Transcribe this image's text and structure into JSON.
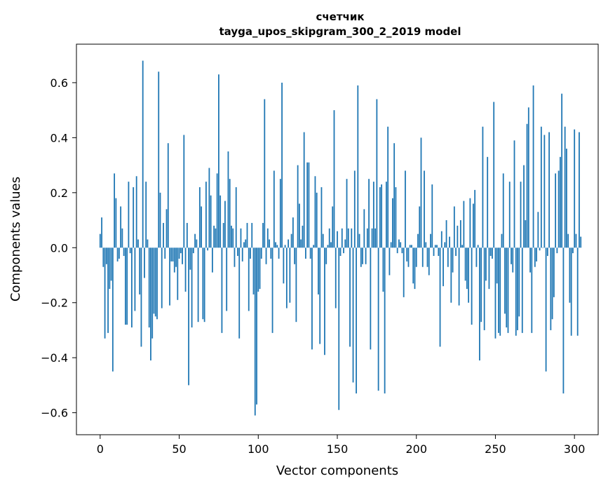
{
  "chart_data": {
    "type": "bar",
    "title": "счетчик",
    "subtitle": "tayga_upos_skipgram_300_2_2019 model",
    "xlabel": "Vector components",
    "ylabel": "Components values",
    "xlim": [
      -15,
      315
    ],
    "ylim": [
      -0.68,
      0.74
    ],
    "xticks": [
      0,
      50,
      100,
      150,
      200,
      250,
      300
    ],
    "xtick_labels": [
      "0",
      "50",
      "100",
      "150",
      "200",
      "250",
      "300"
    ],
    "yticks": [
      -0.6,
      -0.4,
      -0.2,
      0.0,
      0.2,
      0.4,
      0.6
    ],
    "ytick_labels": [
      "−0.6",
      "−0.4",
      "−0.2",
      "0.0",
      "0.2",
      "0.4",
      "0.6"
    ],
    "grid": false,
    "bar_color": "#1f77b4",
    "series": [
      {
        "values": [
          0.05,
          0.11,
          -0.07,
          -0.33,
          -0.06,
          -0.31,
          -0.15,
          -0.12,
          -0.45,
          0.27,
          0.18,
          -0.05,
          -0.04,
          0.15,
          0.07,
          -0.03,
          -0.28,
          -0.28,
          0.24,
          -0.02,
          -0.29,
          0.22,
          -0.23,
          0.26,
          0.03,
          -0.17,
          -0.36,
          0.68,
          -0.11,
          0.24,
          0.03,
          -0.29,
          -0.41,
          -0.33,
          -0.24,
          -0.25,
          -0.26,
          0.64,
          0.2,
          -0.22,
          0.09,
          -0.04,
          0.14,
          0.38,
          -0.21,
          -0.05,
          -0.05,
          -0.09,
          -0.07,
          -0.19,
          -0.04,
          -0.02,
          -0.06,
          0.41,
          -0.16,
          0.09,
          -0.5,
          -0.08,
          -0.29,
          -0.02,
          0.05,
          0.03,
          -0.27,
          0.22,
          0.15,
          -0.26,
          -0.27,
          0.24,
          -0.01,
          0.29,
          0.19,
          -0.09,
          0.08,
          0.07,
          0.27,
          0.63,
          0.19,
          -0.31,
          0.09,
          0.17,
          -0.23,
          0.35,
          0.25,
          0.08,
          0.07,
          -0.07,
          0.22,
          -0.03,
          -0.33,
          0.07,
          -0.05,
          0.02,
          0.03,
          0.09,
          -0.23,
          -0.04,
          0.09,
          -0.17,
          -0.61,
          -0.57,
          -0.16,
          -0.15,
          -0.04,
          0.09,
          0.54,
          -0.06,
          0.07,
          0.03,
          -0.04,
          -0.31,
          0.28,
          0.02,
          0.01,
          -0.04,
          0.25,
          0.6,
          -0.13,
          0.01,
          -0.22,
          0.03,
          -0.2,
          0.05,
          0.11,
          -0.06,
          -0.27,
          0.3,
          0.16,
          0.03,
          0.08,
          0.42,
          -0.04,
          0.31,
          0.31,
          -0.04,
          -0.37,
          0.01,
          0.26,
          0.2,
          -0.17,
          -0.35,
          0.22,
          0.05,
          -0.39,
          -0.06,
          0.01,
          0.07,
          0.02,
          0.15,
          0.5,
          -0.22,
          0.06,
          -0.59,
          -0.03,
          0.07,
          -0.02,
          0.03,
          0.25,
          0.07,
          -0.36,
          0.07,
          -0.49,
          0.28,
          -0.53,
          0.59,
          0.05,
          -0.07,
          -0.06,
          0.14,
          -0.06,
          0.07,
          0.25,
          -0.37,
          0.07,
          0.24,
          0.07,
          0.54,
          -0.52,
          0.22,
          0.23,
          -0.16,
          -0.53,
          0.24,
          0.44,
          -0.1,
          0.02,
          0.18,
          0.38,
          0.22,
          -0.02,
          0.03,
          0.02,
          -0.02,
          -0.18,
          0.28,
          -0.05,
          -0.07,
          0.01,
          0.01,
          -0.13,
          -0.15,
          -0.07,
          0.05,
          0.15,
          0.4,
          -0.07,
          0.28,
          0.02,
          -0.07,
          -0.1,
          0.05,
          0.23,
          -0.03,
          0.01,
          0.01,
          -0.03,
          -0.36,
          0.06,
          -0.14,
          0.02,
          0.1,
          -0.07,
          0.04,
          -0.2,
          -0.09,
          0.15,
          -0.03,
          0.08,
          -0.21,
          0.1,
          0.01,
          0.17,
          -0.12,
          -0.15,
          -0.2,
          0.18,
          -0.28,
          0.16,
          0.21,
          -0.07,
          0.01,
          -0.41,
          -0.27,
          0.44,
          -0.3,
          -0.12,
          0.33,
          -0.15,
          -0.03,
          -0.04,
          0.53,
          -0.33,
          -0.13,
          -0.31,
          -0.32,
          0.05,
          0.27,
          -0.24,
          -0.29,
          -0.31,
          0.24,
          -0.06,
          -0.09,
          0.39,
          -0.32,
          -0.3,
          -0.25,
          0.24,
          -0.31,
          0.3,
          0.1,
          0.45,
          0.51,
          -0.09,
          -0.31,
          0.59,
          -0.07,
          -0.05,
          0.13,
          -0.01,
          0.44,
          0.0,
          0.41,
          -0.45,
          -0.03,
          0.42,
          -0.3,
          -0.26,
          -0.18,
          0.27,
          -0.02,
          0.28,
          0.33,
          0.56,
          -0.53,
          0.44,
          0.36,
          0.05,
          -0.2,
          -0.32,
          -0.02,
          0.43,
          0.05,
          -0.32,
          0.42,
          0.04
        ]
      }
    ]
  }
}
